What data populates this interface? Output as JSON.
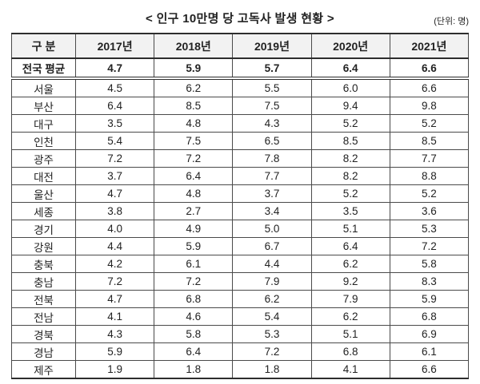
{
  "title": "< 인구 10만명 당 고독사 발생 현황 >",
  "unit_label": "(단위: 명)",
  "colors": {
    "header_bg": "#f2f2f2",
    "border": "#4a4a4a",
    "strong_border": "#2d2d2d",
    "text": "#222222"
  },
  "chart_data": {
    "type": "table",
    "title": "인구 10만명 당 고독사 발생 현황",
    "unit": "명",
    "columns": [
      "구 분",
      "2017년",
      "2018년",
      "2019년",
      "2020년",
      "2021년"
    ],
    "summary": {
      "label": "전국 평균",
      "values": [
        "4.7",
        "5.9",
        "5.7",
        "6.4",
        "6.6"
      ]
    },
    "rows": [
      {
        "label": "서울",
        "values": [
          "4.5",
          "6.2",
          "5.5",
          "6.0",
          "6.6"
        ]
      },
      {
        "label": "부산",
        "values": [
          "6.4",
          "8.5",
          "7.5",
          "9.4",
          "9.8"
        ]
      },
      {
        "label": "대구",
        "values": [
          "3.5",
          "4.8",
          "4.3",
          "5.2",
          "5.2"
        ]
      },
      {
        "label": "인천",
        "values": [
          "5.4",
          "7.5",
          "6.5",
          "8.5",
          "8.5"
        ]
      },
      {
        "label": "광주",
        "values": [
          "7.2",
          "7.2",
          "7.8",
          "8.2",
          "7.7"
        ]
      },
      {
        "label": "대전",
        "values": [
          "3.7",
          "6.4",
          "7.7",
          "8.2",
          "8.8"
        ]
      },
      {
        "label": "울산",
        "values": [
          "4.7",
          "4.8",
          "3.7",
          "5.2",
          "5.2"
        ]
      },
      {
        "label": "세종",
        "values": [
          "3.8",
          "2.7",
          "3.4",
          "3.5",
          "3.6"
        ]
      },
      {
        "label": "경기",
        "values": [
          "4.0",
          "4.9",
          "5.0",
          "5.1",
          "5.3"
        ]
      },
      {
        "label": "강원",
        "values": [
          "4.4",
          "5.9",
          "6.7",
          "6.4",
          "7.2"
        ]
      },
      {
        "label": "충북",
        "values": [
          "4.2",
          "6.1",
          "4.4",
          "6.2",
          "5.8"
        ]
      },
      {
        "label": "충남",
        "values": [
          "7.2",
          "7.2",
          "7.9",
          "9.2",
          "8.3"
        ]
      },
      {
        "label": "전북",
        "values": [
          "4.7",
          "6.8",
          "6.2",
          "7.9",
          "5.9"
        ]
      },
      {
        "label": "전남",
        "values": [
          "4.1",
          "4.6",
          "5.4",
          "6.2",
          "6.8"
        ]
      },
      {
        "label": "경북",
        "values": [
          "4.3",
          "5.8",
          "5.3",
          "5.1",
          "6.9"
        ]
      },
      {
        "label": "경남",
        "values": [
          "5.9",
          "6.4",
          "7.2",
          "6.8",
          "6.1"
        ]
      },
      {
        "label": "제주",
        "values": [
          "1.9",
          "1.8",
          "1.8",
          "4.1",
          "6.6"
        ]
      }
    ]
  }
}
